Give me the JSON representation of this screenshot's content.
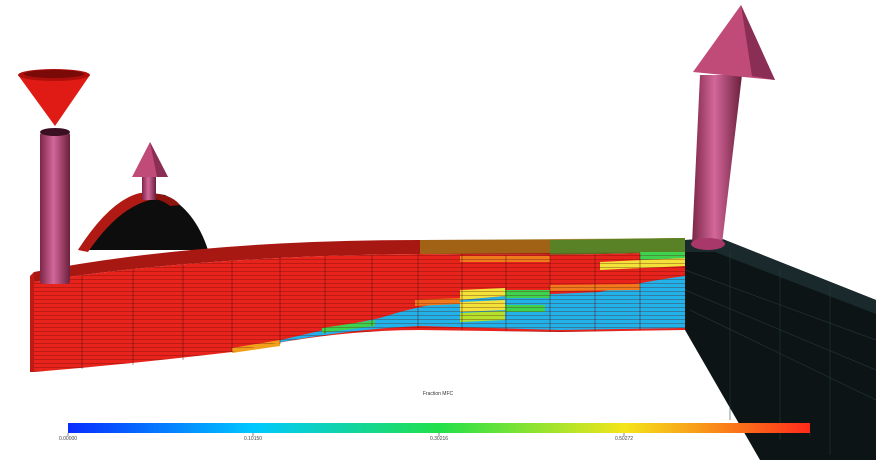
{
  "colorbar": {
    "title": "Fraction MFC",
    "ticks": [
      "0.00000",
      "0.10150",
      "0.30216",
      "0.50272",
      ""
    ],
    "gradient_colors": [
      "#0a2cff",
      "#00c8ff",
      "#22e04a",
      "#f4e51a",
      "#ff2a1a"
    ]
  },
  "colors": {
    "high_fraction": "#e8231b",
    "low_fraction": "#22b2ea",
    "mid_fraction_yellow": "#f2e23a",
    "mid_fraction_green": "#3fd24e",
    "well_pipe": "#c04a78",
    "background": "#ffffff",
    "inactive_cells": "#0c1416"
  },
  "icons": {
    "injector_well": "cone-icon",
    "producer_wells": "arrow-up-icon"
  }
}
